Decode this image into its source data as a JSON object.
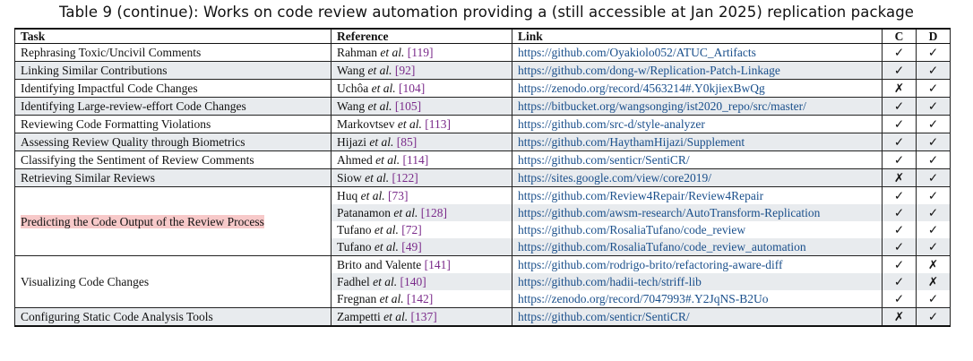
{
  "caption": "Table 9 (continue): Works on code review automation providing a (still accessible at Jan 2025) replication package",
  "headers": {
    "task": "Task",
    "reference": "Reference",
    "link": "Link",
    "c": "C",
    "d": "D"
  },
  "groups": [
    {
      "task": "Rephrasing Toxic/Uncivil Comments",
      "rows": [
        {
          "author": "Rahman",
          "etal": " et al.",
          "cite": "[119]",
          "link": "https://github.com/Oyakiolo052/ATUC_Artifacts",
          "c": "✓",
          "d": "✓"
        }
      ]
    },
    {
      "task": "Linking Similar Contributions",
      "rows": [
        {
          "author": "Wang",
          "etal": " et al.",
          "cite": "[92]",
          "link": "https://github.com/dong-w/Replication-Patch-Linkage",
          "c": "✓",
          "d": "✓"
        }
      ]
    },
    {
      "task": "Identifying Impactful Code Changes",
      "rows": [
        {
          "author": "Uchôa",
          "etal": " et al.",
          "cite": "[104]",
          "link": "https://zenodo.org/record/4563214#.Y0kjiexBwQg",
          "c": "✗",
          "d": "✓"
        }
      ]
    },
    {
      "task": "Identifying Large-review-effort Code Changes",
      "rows": [
        {
          "author": "Wang",
          "etal": " et al.",
          "cite": "[105]",
          "link": "https://bitbucket.org/wangsonging/ist2020_repo/src/master/",
          "c": "✓",
          "d": "✓"
        }
      ]
    },
    {
      "task": "Reviewing Code Formatting Violations",
      "rows": [
        {
          "author": "Markovtsev",
          "etal": " et al.",
          "cite": "[113]",
          "link": "https://github.com/src-d/style-analyzer",
          "c": "✓",
          "d": "✓"
        }
      ]
    },
    {
      "task": "Assessing Review Quality through Biometrics",
      "rows": [
        {
          "author": "Hijazi",
          "etal": " et al.",
          "cite": "[85]",
          "link": "https://github.com/HaythamHijazi/Supplement",
          "c": "✓",
          "d": "✓"
        }
      ]
    },
    {
      "task": "Classifying the Sentiment of Review Comments",
      "rows": [
        {
          "author": "Ahmed",
          "etal": " et al.",
          "cite": "[114]",
          "link": "https://github.com/senticr/SentiCR/",
          "c": "✓",
          "d": "✓"
        }
      ]
    },
    {
      "task": "Retrieving Similar Reviews",
      "rows": [
        {
          "author": "Siow",
          "etal": " et al.",
          "cite": "[122]",
          "link": "https://sites.google.com/view/core2019/",
          "c": "✗",
          "d": "✓"
        }
      ]
    },
    {
      "task": "Predicting the Code Output of the Review Process",
      "rows": [
        {
          "author": "Huq",
          "etal": " et al.",
          "cite": "[73]",
          "link": "https://github.com/Review4Repair/Review4Repair",
          "c": "✓",
          "d": "✓"
        },
        {
          "author": "Patanamon",
          "etal": " et al.",
          "cite": "[128]",
          "link": "https://github.com/awsm-research/AutoTransform-Replication",
          "c": "✓",
          "d": "✓"
        },
        {
          "author": "Tufano",
          "etal": " et al.",
          "cite": "[72]",
          "link": "https://github.com/RosaliaTufano/code_review",
          "c": "✓",
          "d": "✓"
        },
        {
          "author": "Tufano",
          "etal": " et al.",
          "cite": "[49]",
          "link": "https://github.com/RosaliaTufano/code_review_automation",
          "c": "✓",
          "d": "✓"
        }
      ]
    },
    {
      "task": "Visualizing Code Changes",
      "rows": [
        {
          "author": "Brito and Valente",
          "etal": "",
          "cite": "[141]",
          "link": "https://github.com/rodrigo-brito/refactoring-aware-diff",
          "c": "✓",
          "d": "✗"
        },
        {
          "author": "Fadhel",
          "etal": " et al.",
          "cite": "[140]",
          "link": "https://github.com/hadii-tech/striff-lib",
          "c": "✓",
          "d": "✗"
        },
        {
          "author": "Fregnan",
          "etal": " et al.",
          "cite": "[142]",
          "link": "https://zenodo.org/record/7047993#.Y2JqNS-B2Uo",
          "c": "✓",
          "d": "✓"
        }
      ]
    },
    {
      "task": "Configuring Static Code Analysis Tools",
      "rows": [
        {
          "author": "Zampetti",
          "etal": " et al.",
          "cite": "[137]",
          "link": "https://github.com/senticr/SentiCR/",
          "c": "✗",
          "d": "✓"
        }
      ]
    }
  ]
}
